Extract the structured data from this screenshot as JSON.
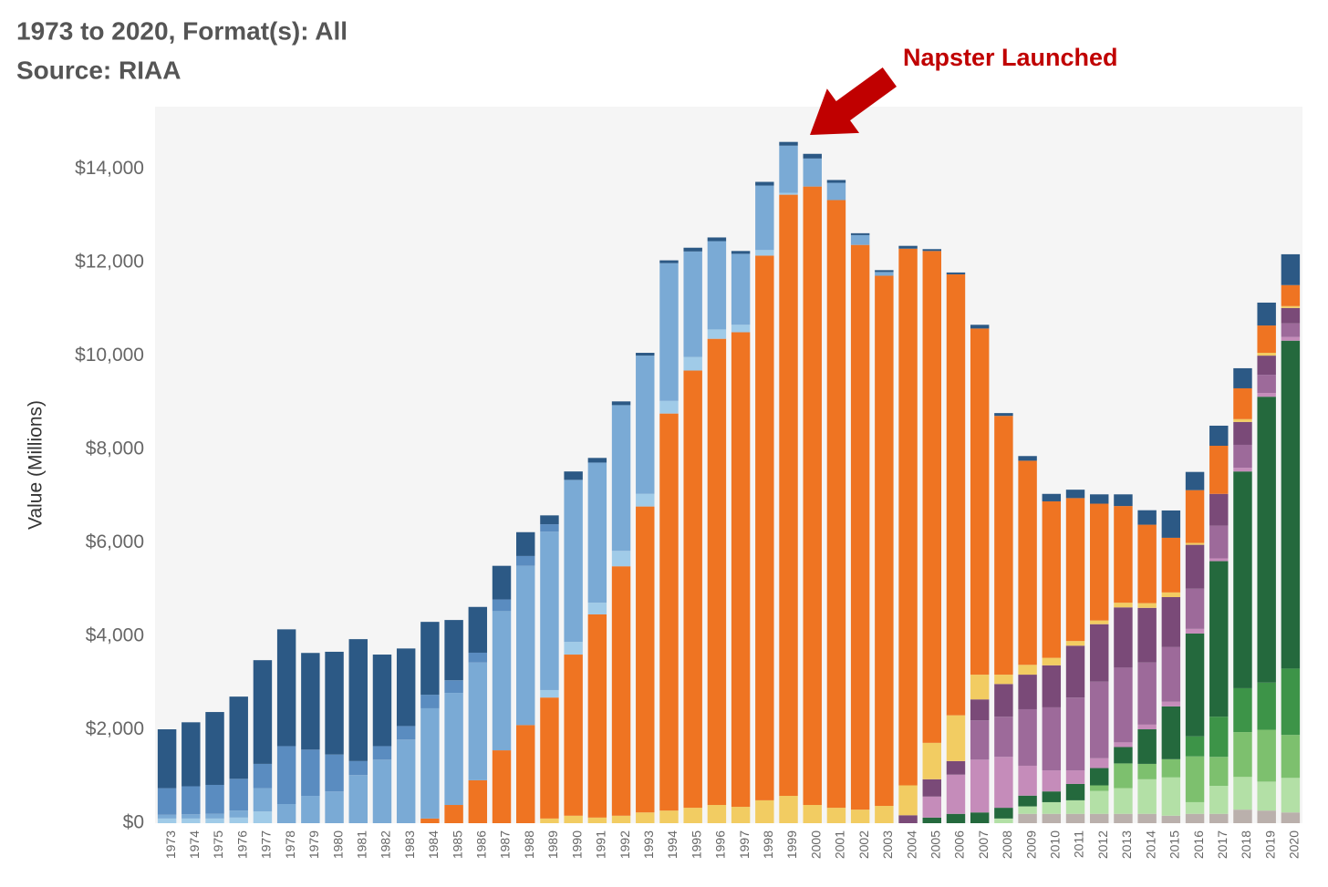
{
  "chart_data": {
    "type": "bar",
    "stacked": true,
    "title": "1973 to 2020, Format(s): All",
    "subtitle": "Source: RIAA",
    "annotation": "Napster Launched",
    "y_label": "Value (Millions)",
    "ylim": [
      0,
      15340
    ],
    "yticks": [
      {
        "value": 0,
        "label": "$0"
      },
      {
        "value": 2000,
        "label": "$2,000"
      },
      {
        "value": 4000,
        "label": "$4,000"
      },
      {
        "value": 6000,
        "label": "$6,000"
      },
      {
        "value": 8000,
        "label": "$8,000"
      },
      {
        "value": 10000,
        "label": "$10,000"
      },
      {
        "value": 12000,
        "label": "$12,000"
      },
      {
        "value": 14000,
        "label": "$14,000"
      }
    ],
    "grid": false,
    "categories": [
      "1973",
      "1974",
      "1975",
      "1976",
      "1977",
      "1978",
      "1979",
      "1980",
      "1981",
      "1982",
      "1983",
      "1984",
      "1985",
      "1986",
      "1987",
      "1988",
      "1989",
      "1990",
      "1991",
      "1992",
      "1993",
      "1994",
      "1995",
      "1996",
      "1997",
      "1998",
      "1999",
      "2000",
      "2001",
      "2002",
      "2003",
      "2004",
      "2005",
      "2006",
      "2007",
      "2008",
      "2009",
      "2010",
      "2011",
      "2012",
      "2013",
      "2014",
      "2015",
      "2016",
      "2017",
      "2018",
      "2019",
      "2020"
    ],
    "series": [
      {
        "color": "#a0cbe8",
        "values": [
          100,
          100,
          100,
          120,
          250,
          0,
          0,
          0,
          0,
          0,
          0,
          0,
          0,
          0,
          0,
          0,
          0,
          0,
          0,
          0,
          0,
          0,
          0,
          0,
          0,
          0,
          0,
          0,
          0,
          0,
          0,
          0,
          0,
          0,
          0,
          0,
          0,
          0,
          0,
          0,
          0,
          0,
          0,
          0,
          0,
          0,
          0,
          0
        ]
      },
      {
        "color": "#bab0ac",
        "values": [
          0,
          0,
          0,
          0,
          0,
          0,
          0,
          0,
          0,
          0,
          0,
          0,
          0,
          0,
          0,
          0,
          0,
          0,
          0,
          0,
          0,
          0,
          0,
          0,
          0,
          0,
          0,
          0,
          0,
          0,
          0,
          0,
          0,
          0,
          0,
          0,
          200,
          200,
          200,
          200,
          200,
          200,
          160,
          200,
          200,
          290,
          270,
          230
        ]
      },
      {
        "color": "#b3e0a6",
        "values": [
          0,
          0,
          0,
          0,
          0,
          0,
          0,
          0,
          0,
          0,
          0,
          0,
          0,
          0,
          0,
          0,
          0,
          0,
          0,
          0,
          0,
          0,
          0,
          0,
          0,
          0,
          0,
          0,
          0,
          0,
          0,
          0,
          0,
          0,
          0,
          100,
          160,
          250,
          290,
          490,
          550,
          740,
          820,
          250,
          600,
          700,
          620,
          740
        ]
      },
      {
        "color": "#7dc06e",
        "values": [
          0,
          0,
          0,
          0,
          0,
          0,
          0,
          0,
          0,
          0,
          0,
          0,
          0,
          0,
          0,
          0,
          0,
          0,
          0,
          0,
          0,
          0,
          0,
          0,
          0,
          0,
          0,
          0,
          0,
          0,
          0,
          0,
          0,
          0,
          0,
          0,
          0,
          0,
          0,
          120,
          530,
          330,
          390,
          980,
          620,
          960,
          1110,
          920
        ]
      },
      {
        "color": "#3d9448",
        "values": [
          0,
          0,
          0,
          0,
          0,
          0,
          0,
          0,
          0,
          0,
          0,
          0,
          0,
          0,
          0,
          0,
          0,
          0,
          0,
          0,
          0,
          0,
          0,
          0,
          0,
          0,
          0,
          0,
          0,
          0,
          0,
          0,
          0,
          0,
          0,
          0,
          0,
          0,
          0,
          0,
          0,
          0,
          0,
          430,
          860,
          940,
          1010,
          1420
        ]
      },
      {
        "color": "#24693d",
        "values": [
          0,
          0,
          0,
          0,
          0,
          0,
          0,
          0,
          0,
          0,
          0,
          0,
          0,
          0,
          0,
          0,
          0,
          0,
          0,
          0,
          0,
          0,
          0,
          0,
          0,
          0,
          0,
          0,
          0,
          0,
          0,
          0,
          120,
          200,
          230,
          230,
          230,
          230,
          350,
          370,
          350,
          740,
          1130,
          2200,
          3330,
          4640,
          6120,
          7020
        ]
      },
      {
        "color": "#c58cba",
        "values": [
          0,
          0,
          0,
          0,
          0,
          0,
          0,
          0,
          0,
          0,
          0,
          0,
          0,
          0,
          0,
          0,
          0,
          0,
          0,
          0,
          0,
          0,
          0,
          0,
          0,
          0,
          0,
          0,
          0,
          0,
          0,
          0,
          450,
          840,
          1130,
          1090,
          640,
          450,
          290,
          210,
          100,
          100,
          100,
          100,
          60,
          80,
          80,
          80
        ]
      },
      {
        "color": "#9d6a9a",
        "values": [
          0,
          0,
          0,
          0,
          0,
          0,
          0,
          0,
          0,
          0,
          0,
          0,
          0,
          0,
          0,
          0,
          0,
          0,
          0,
          0,
          0,
          0,
          0,
          0,
          0,
          0,
          0,
          0,
          0,
          0,
          0,
          0,
          0,
          0,
          840,
          860,
          1210,
          1350,
          1560,
          1640,
          1600,
          1330,
          1170,
          860,
          700,
          490,
          390,
          290
        ]
      },
      {
        "color": "#7a4a78",
        "values": [
          0,
          0,
          0,
          0,
          0,
          0,
          0,
          0,
          0,
          0,
          0,
          0,
          0,
          0,
          0,
          0,
          0,
          0,
          0,
          0,
          0,
          0,
          0,
          0,
          0,
          0,
          0,
          0,
          0,
          0,
          0,
          170,
          370,
          290,
          450,
          700,
          740,
          900,
          1110,
          1230,
          1290,
          1170,
          1070,
          940,
          680,
          490,
          410,
          330
        ]
      },
      {
        "color": "#f2cc62",
        "values": [
          0,
          0,
          0,
          0,
          0,
          0,
          0,
          0,
          0,
          0,
          0,
          0,
          0,
          0,
          0,
          0,
          100,
          160,
          120,
          160,
          230,
          270,
          330,
          390,
          350,
          490,
          585,
          390,
          330,
          290,
          370,
          640,
          780,
          980,
          530,
          200,
          210,
          160,
          100,
          80,
          100,
          100,
          100,
          40,
          0,
          60,
          60,
          40
        ]
      },
      {
        "color": "#ef7422",
        "values": [
          0,
          0,
          0,
          0,
          0,
          0,
          0,
          0,
          0,
          0,
          0,
          100,
          390,
          920,
          1560,
          2100,
          2590,
          3450,
          4350,
          5340,
          6550,
          8500,
          9360,
          9980,
          10160,
          11660,
          12870,
          13240,
          13010,
          12090,
          11350,
          11490,
          10530,
          9440,
          7410,
          5540,
          4370,
          3350,
          3060,
          2500,
          2070,
          1680,
          1170,
          1130,
          1030,
          660,
          585,
          450
        ]
      },
      {
        "color": "#a0cbe8",
        "values": [
          0,
          0,
          0,
          0,
          0,
          0,
          0,
          0,
          0,
          0,
          0,
          0,
          0,
          0,
          0,
          0,
          160,
          270,
          250,
          330,
          270,
          270,
          290,
          200,
          160,
          120,
          40,
          0,
          0,
          0,
          0,
          0,
          0,
          0,
          0,
          0,
          0,
          0,
          0,
          0,
          0,
          0,
          0,
          0,
          0,
          0,
          0,
          0
        ]
      },
      {
        "color": "#7aaad5",
        "values": [
          80,
          90,
          100,
          150,
          500,
          410,
          585,
          680,
          1030,
          1360,
          1790,
          2360,
          2400,
          2520,
          2980,
          3410,
          3390,
          3470,
          3000,
          3120,
          2960,
          2950,
          2260,
          1890,
          1520,
          1380,
          1010,
          600,
          370,
          210,
          80,
          0,
          0,
          0,
          0,
          0,
          0,
          0,
          0,
          0,
          0,
          0,
          0,
          0,
          0,
          0,
          0,
          0
        ]
      },
      {
        "color": "#5a8cc0",
        "values": [
          570,
          600,
          620,
          680,
          520,
          1240,
          990,
          790,
          300,
          290,
          290,
          290,
          270,
          210,
          250,
          210,
          160,
          0,
          0,
          0,
          0,
          0,
          0,
          0,
          0,
          0,
          0,
          0,
          0,
          0,
          0,
          0,
          0,
          0,
          0,
          0,
          0,
          0,
          0,
          0,
          0,
          0,
          0,
          0,
          0,
          0,
          0,
          0
        ]
      },
      {
        "color": "#2c5985",
        "values": [
          1260,
          1370,
          1560,
          1760,
          2220,
          2500,
          2070,
          2200,
          2610,
          1960,
          1660,
          1560,
          1290,
          980,
          720,
          510,
          190,
          180,
          100,
          80,
          60,
          60,
          80,
          80,
          60,
          80,
          80,
          100,
          60,
          40,
          40,
          60,
          40,
          40,
          80,
          60,
          100,
          160,
          180,
          200,
          250,
          310,
          585,
          390,
          430,
          430,
          490,
          660
        ]
      }
    ]
  }
}
